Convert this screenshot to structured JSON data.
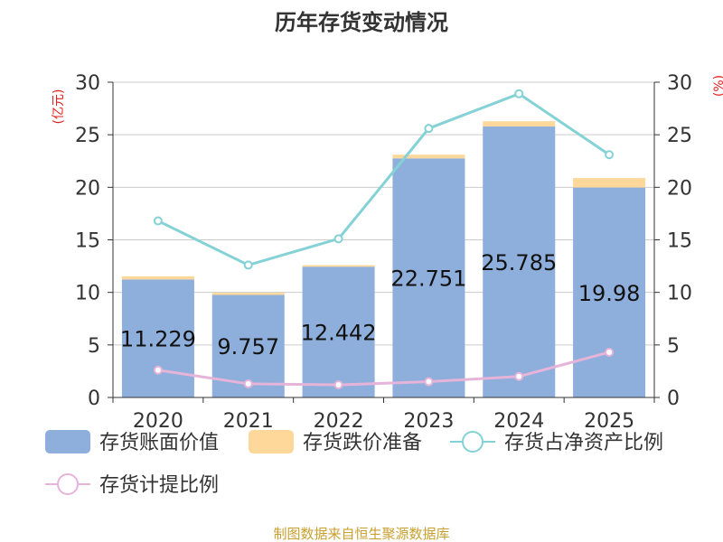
{
  "chart_data": {
    "type": "bar",
    "title": "历年存货变动情况",
    "y_unit_left": "(亿元)",
    "y_unit_right": "(%)",
    "categories": [
      "2020",
      "2021",
      "2022",
      "2023",
      "2024",
      "2025"
    ],
    "ylim": [
      0,
      30
    ],
    "yticks": [
      0,
      5,
      10,
      15,
      20,
      25,
      30
    ],
    "y2lim": [
      0,
      30
    ],
    "y2ticks": [
      0,
      5,
      10,
      15,
      20,
      25,
      30
    ],
    "grid": true,
    "legend_position": "bottom",
    "series": [
      {
        "name": "存货账面价值",
        "type": "bar",
        "stack": "inv",
        "color": "#8eaedb",
        "values": [
          11.229,
          9.757,
          12.442,
          22.751,
          25.785,
          19.98
        ],
        "labels": [
          "11.229",
          "9.757",
          "12.442",
          "22.751",
          "25.785",
          "19.98"
        ]
      },
      {
        "name": "存货跌价准备",
        "type": "bar",
        "stack": "inv",
        "color": "#fdd89a",
        "values": [
          0.3,
          0.2,
          0.15,
          0.35,
          0.5,
          0.9
        ]
      },
      {
        "name": "存货占净资产比例",
        "type": "line",
        "axis": "right",
        "color": "#84d2d5",
        "values": [
          16.8,
          12.6,
          15.1,
          25.6,
          28.9,
          23.1
        ]
      },
      {
        "name": "存货计提比例",
        "type": "line",
        "axis": "right",
        "color": "#e6b3d9",
        "values": [
          2.6,
          1.3,
          1.2,
          1.5,
          2.0,
          4.3
        ]
      }
    ]
  },
  "footer": {
    "source": "制图数据来自恒生聚源数据库",
    "source_color": "#c8a030"
  }
}
